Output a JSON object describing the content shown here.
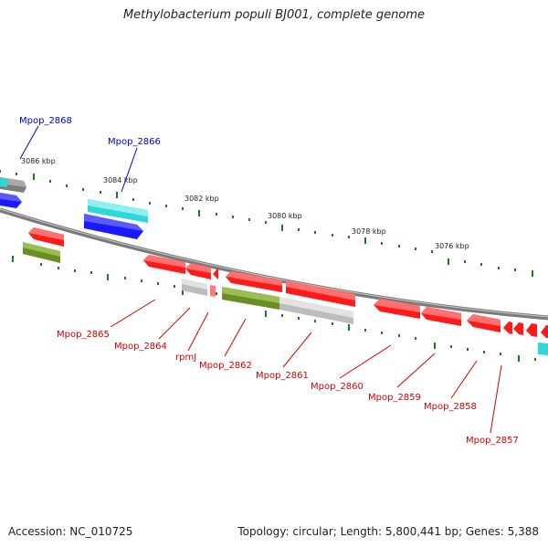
{
  "header": {
    "title": "Methylobacterium populi BJ001, complete genome"
  },
  "footer": {
    "accession": "Accession: NC_010725",
    "summary": "Topology: circular; Length: 5,800,441 bp; Genes: 5,388"
  },
  "colors": {
    "backbone": "#7a7a7a",
    "tick": "#1f7a1f",
    "red": "#ff1a1a",
    "gray": "#bdbdbd",
    "olive": "#6b8e23",
    "cyan": "#2ed8d8",
    "blue": "#1a1aff",
    "dark_gray": "#7d7d7d",
    "label_red": "#d40000",
    "label_blue": "#0000cc"
  },
  "kbp_labels": [
    "3086 kbp",
    "3084 kbp",
    "3082 kbp",
    "3080 kbp",
    "3078 kbp",
    "3076 kbp"
  ],
  "genes": [
    {
      "name": "Mpop_2868",
      "color": "blue"
    },
    {
      "name": "Mpop_2866",
      "color": "blue"
    },
    {
      "name": "Mpop_2865",
      "color": "red"
    },
    {
      "name": "Mpop_2864",
      "color": "red"
    },
    {
      "name": "rpmJ",
      "color": "red"
    },
    {
      "name": "Mpop_2862",
      "color": "red"
    },
    {
      "name": "Mpop_2861",
      "color": "red"
    },
    {
      "name": "Mpop_2860",
      "color": "red"
    },
    {
      "name": "Mpop_2859",
      "color": "red"
    },
    {
      "name": "Mpop_2858",
      "color": "red"
    },
    {
      "name": "Mpop_2857",
      "color": "red"
    }
  ]
}
